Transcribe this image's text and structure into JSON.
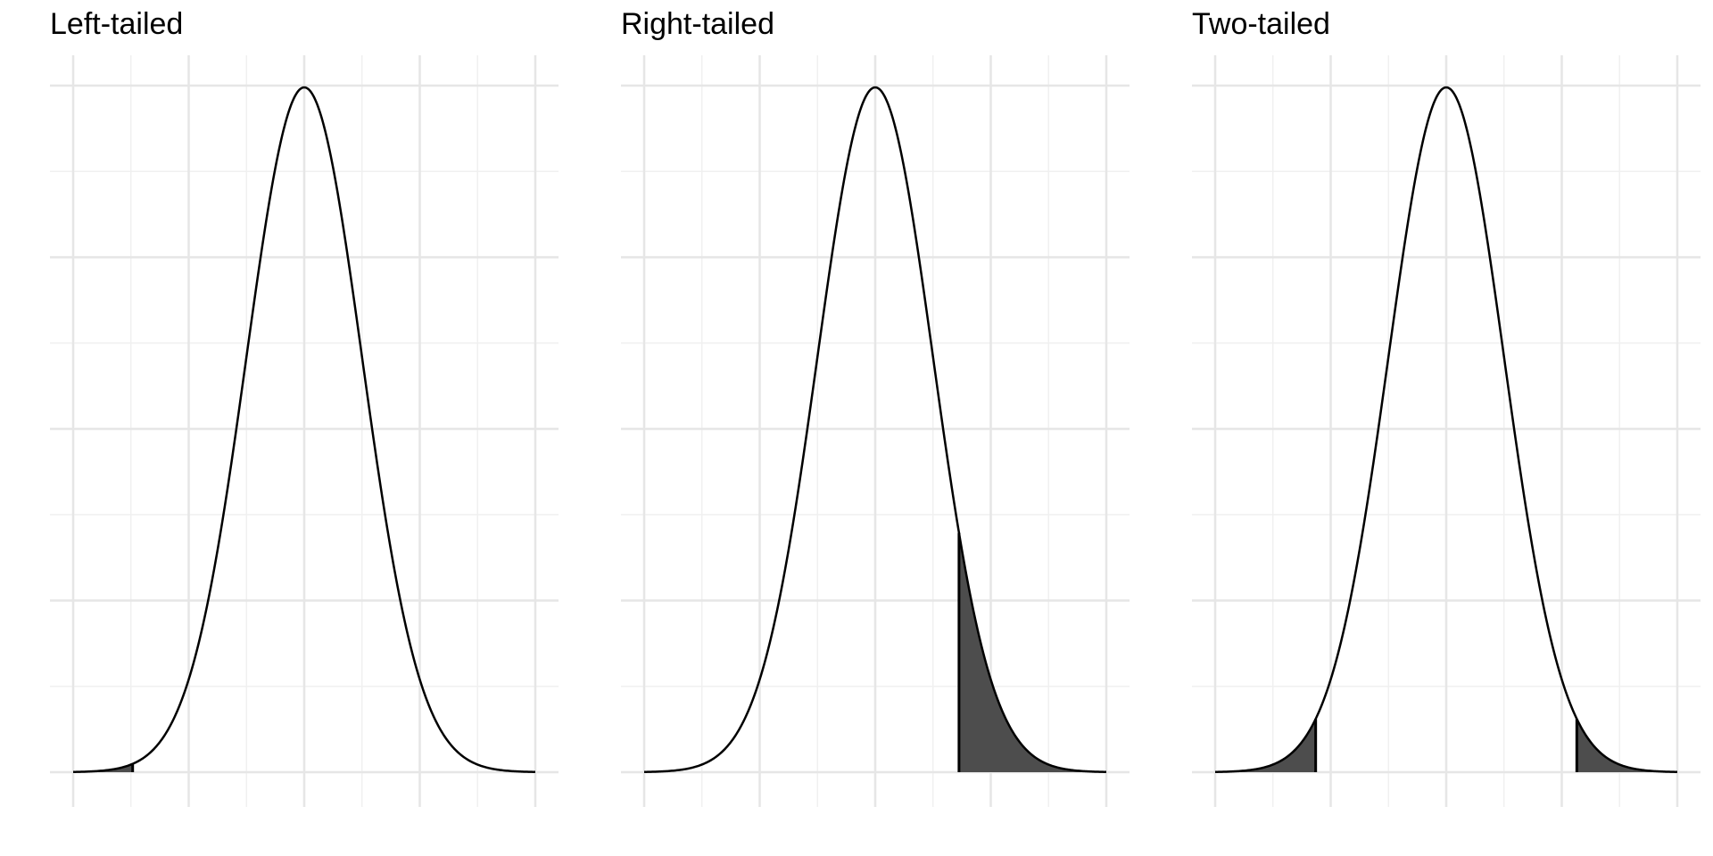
{
  "colors": {
    "grid_major": "#e6e6e6",
    "grid_minor": "#f0f0f0",
    "curve": "#000000",
    "fill": "#4d4d4d",
    "background": "#ffffff"
  },
  "chart_data": [
    {
      "type": "area",
      "title": "Left-tailed",
      "distribution": "standard normal density",
      "xlim": [
        -4,
        4
      ],
      "ylim": [
        0,
        0.4
      ],
      "x_major_ticks": [
        -4,
        -2,
        0,
        2,
        4
      ],
      "x_minor_ticks": [
        -3,
        -1,
        1,
        3
      ],
      "y_major_ticks": [
        0,
        0.1,
        0.2,
        0.3,
        0.4
      ],
      "y_minor_ticks": [
        0.05,
        0.15,
        0.25,
        0.35
      ],
      "tick_labels_shown": false,
      "grid": true,
      "shaded_regions": [
        [
          -4,
          -2.97
        ]
      ]
    },
    {
      "type": "area",
      "title": "Right-tailed",
      "distribution": "standard normal density",
      "xlim": [
        -4,
        4
      ],
      "ylim": [
        0,
        0.4
      ],
      "x_major_ticks": [
        -4,
        -2,
        0,
        2,
        4
      ],
      "x_minor_ticks": [
        -3,
        -1,
        1,
        3
      ],
      "y_major_ticks": [
        0,
        0.1,
        0.2,
        0.3,
        0.4
      ],
      "y_minor_ticks": [
        0.05,
        0.15,
        0.25,
        0.35
      ],
      "tick_labels_shown": false,
      "grid": true,
      "shaded_regions": [
        [
          1.45,
          4
        ]
      ]
    },
    {
      "type": "area",
      "title": "Two-tailed",
      "distribution": "standard normal density",
      "xlim": [
        -4,
        4
      ],
      "ylim": [
        0,
        0.4
      ],
      "x_major_ticks": [
        -4,
        -2,
        0,
        2,
        4
      ],
      "x_minor_ticks": [
        -3,
        -1,
        1,
        3
      ],
      "y_major_ticks": [
        0,
        0.1,
        0.2,
        0.3,
        0.4
      ],
      "y_minor_ticks": [
        0.05,
        0.15,
        0.25,
        0.35
      ],
      "tick_labels_shown": false,
      "grid": true,
      "shaded_regions": [
        [
          -4,
          -2.26
        ],
        [
          2.26,
          4
        ]
      ]
    }
  ]
}
